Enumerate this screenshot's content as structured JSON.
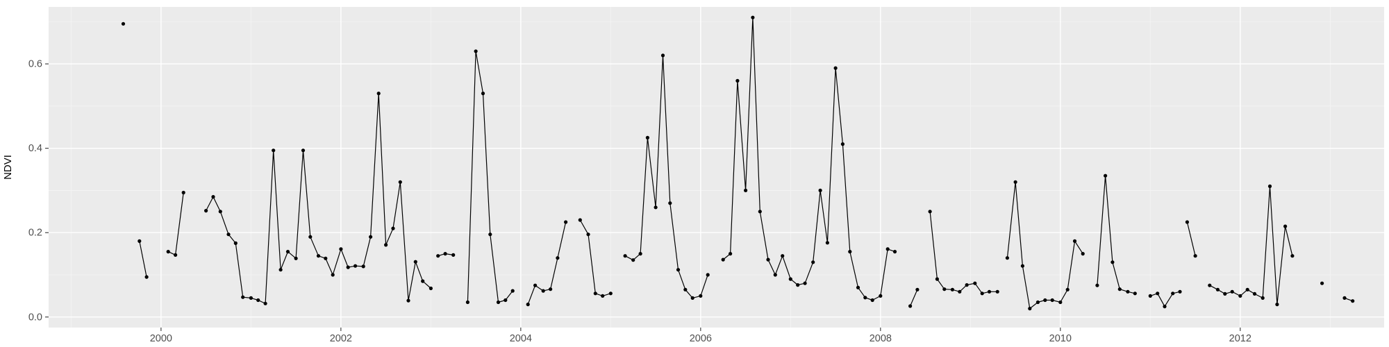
{
  "chart_data": {
    "type": "line",
    "title": "",
    "xlabel": "",
    "ylabel": "NDVI",
    "legend": "none",
    "grid": "on",
    "xlim": [
      1998.75,
      2013.6
    ],
    "ylim": [
      -0.025,
      0.735
    ],
    "x_ticks": [
      2000,
      2002,
      2004,
      2006,
      2008,
      2010,
      2012
    ],
    "x_tick_labels": [
      "2000",
      "2002",
      "2004",
      "2006",
      "2008",
      "2010",
      "2012"
    ],
    "x_minor": [
      1999,
      2001,
      2003,
      2005,
      2007,
      2009,
      2011,
      2013
    ],
    "y_ticks": [
      0.0,
      0.2,
      0.4,
      0.6
    ],
    "y_tick_labels": [
      "0.0",
      "0.2",
      "0.4",
      "0.6"
    ],
    "y_minor": [
      0.1,
      0.3,
      0.5,
      0.7
    ],
    "colors": {
      "outer_bg": "#FFFFFF",
      "panel_bg": "#EBEBEB",
      "grid_major": "#FFFFFF",
      "grid_minor": "#F4F4F4",
      "tick_mark": "#333333",
      "tick_text": "#4D4D4D",
      "line": "#000000",
      "point": "#000000"
    },
    "series": [
      {
        "name": "NDVI",
        "note": "monthly NDVI values 1999-2013; segments are continuous runs separated by missing data",
        "segments": [
          [
            [
              1999.58,
              0.695
            ]
          ],
          [
            [
              1999.76,
              0.18
            ],
            [
              1999.84,
              0.095
            ]
          ],
          [
            [
              2000.08,
              0.155
            ],
            [
              2000.16,
              0.147
            ],
            [
              2000.25,
              0.295
            ]
          ],
          [
            [
              2000.5,
              0.252
            ],
            [
              2000.58,
              0.285
            ],
            [
              2000.66,
              0.25
            ],
            [
              2000.75,
              0.196
            ],
            [
              2000.83,
              0.175
            ],
            [
              2000.91,
              0.047
            ],
            [
              2001.0,
              0.045
            ],
            [
              2001.08,
              0.04
            ],
            [
              2001.16,
              0.032
            ],
            [
              2001.25,
              0.395
            ],
            [
              2001.33,
              0.112
            ],
            [
              2001.41,
              0.155
            ],
            [
              2001.5,
              0.139
            ],
            [
              2001.58,
              0.395
            ],
            [
              2001.66,
              0.19
            ],
            [
              2001.75,
              0.145
            ],
            [
              2001.83,
              0.139
            ],
            [
              2001.91,
              0.1
            ],
            [
              2002.0,
              0.161
            ],
            [
              2002.08,
              0.118
            ],
            [
              2002.16,
              0.121
            ],
            [
              2002.25,
              0.12
            ],
            [
              2002.33,
              0.19
            ],
            [
              2002.42,
              0.53
            ],
            [
              2002.5,
              0.171
            ],
            [
              2002.58,
              0.21
            ],
            [
              2002.66,
              0.32
            ],
            [
              2002.75,
              0.039
            ],
            [
              2002.83,
              0.131
            ],
            [
              2002.91,
              0.085
            ],
            [
              2003.0,
              0.068
            ]
          ],
          [
            [
              2003.08,
              0.145
            ],
            [
              2003.16,
              0.15
            ],
            [
              2003.25,
              0.147
            ]
          ],
          [
            [
              2003.41,
              0.035
            ],
            [
              2003.5,
              0.63
            ],
            [
              2003.58,
              0.53
            ],
            [
              2003.66,
              0.196
            ],
            [
              2003.75,
              0.035
            ],
            [
              2003.83,
              0.04
            ],
            [
              2003.91,
              0.062
            ]
          ],
          [
            [
              2004.08,
              0.03
            ],
            [
              2004.16,
              0.075
            ],
            [
              2004.25,
              0.062
            ],
            [
              2004.33,
              0.066
            ],
            [
              2004.41,
              0.14
            ],
            [
              2004.5,
              0.225
            ]
          ],
          [
            [
              2004.66,
              0.23
            ],
            [
              2004.75,
              0.196
            ],
            [
              2004.83,
              0.056
            ],
            [
              2004.91,
              0.05
            ],
            [
              2005.0,
              0.056
            ]
          ],
          [
            [
              2005.16,
              0.145
            ],
            [
              2005.25,
              0.135
            ],
            [
              2005.33,
              0.15
            ],
            [
              2005.41,
              0.425
            ],
            [
              2005.5,
              0.26
            ],
            [
              2005.58,
              0.62
            ],
            [
              2005.66,
              0.27
            ],
            [
              2005.75,
              0.112
            ],
            [
              2005.83,
              0.065
            ],
            [
              2005.91,
              0.045
            ],
            [
              2006.0,
              0.05
            ],
            [
              2006.08,
              0.1
            ]
          ],
          [
            [
              2006.25,
              0.136
            ],
            [
              2006.33,
              0.15
            ],
            [
              2006.41,
              0.56
            ],
            [
              2006.5,
              0.3
            ],
            [
              2006.58,
              0.71
            ],
            [
              2006.66,
              0.25
            ],
            [
              2006.75,
              0.136
            ],
            [
              2006.83,
              0.1
            ],
            [
              2006.91,
              0.145
            ],
            [
              2007.0,
              0.09
            ],
            [
              2007.08,
              0.076
            ],
            [
              2007.16,
              0.08
            ],
            [
              2007.25,
              0.13
            ],
            [
              2007.33,
              0.3
            ],
            [
              2007.41,
              0.176
            ],
            [
              2007.5,
              0.59
            ],
            [
              2007.58,
              0.41
            ],
            [
              2007.66,
              0.155
            ],
            [
              2007.75,
              0.07
            ],
            [
              2007.83,
              0.046
            ],
            [
              2007.91,
              0.04
            ],
            [
              2008.0,
              0.05
            ],
            [
              2008.08,
              0.161
            ],
            [
              2008.16,
              0.155
            ]
          ],
          [
            [
              2008.33,
              0.026
            ],
            [
              2008.41,
              0.065
            ]
          ],
          [
            [
              2008.55,
              0.25
            ],
            [
              2008.63,
              0.09
            ],
            [
              2008.71,
              0.066
            ],
            [
              2008.8,
              0.065
            ],
            [
              2008.88,
              0.06
            ],
            [
              2008.96,
              0.076
            ],
            [
              2009.05,
              0.08
            ],
            [
              2009.13,
              0.056
            ],
            [
              2009.21,
              0.06
            ],
            [
              2009.3,
              0.06
            ]
          ],
          [
            [
              2009.41,
              0.14
            ],
            [
              2009.5,
              0.32
            ],
            [
              2009.58,
              0.121
            ],
            [
              2009.66,
              0.02
            ],
            [
              2009.75,
              0.035
            ],
            [
              2009.83,
              0.04
            ],
            [
              2009.91,
              0.04
            ],
            [
              2010.0,
              0.035
            ],
            [
              2010.08,
              0.065
            ],
            [
              2010.16,
              0.18
            ],
            [
              2010.25,
              0.15
            ]
          ],
          [
            [
              2010.41,
              0.075
            ],
            [
              2010.5,
              0.335
            ],
            [
              2010.58,
              0.13
            ],
            [
              2010.66,
              0.066
            ],
            [
              2010.75,
              0.06
            ],
            [
              2010.83,
              0.056
            ]
          ],
          [
            [
              2011.0,
              0.05
            ],
            [
              2011.08,
              0.056
            ],
            [
              2011.16,
              0.025
            ],
            [
              2011.25,
              0.056
            ],
            [
              2011.33,
              0.06
            ]
          ],
          [
            [
              2011.41,
              0.225
            ],
            [
              2011.5,
              0.145
            ]
          ],
          [
            [
              2011.66,
              0.075
            ],
            [
              2011.75,
              0.065
            ],
            [
              2011.83,
              0.055
            ],
            [
              2011.91,
              0.06
            ],
            [
              2012.0,
              0.05
            ],
            [
              2012.08,
              0.065
            ],
            [
              2012.16,
              0.055
            ],
            [
              2012.25,
              0.045
            ],
            [
              2012.33,
              0.31
            ],
            [
              2012.41,
              0.03
            ],
            [
              2012.5,
              0.215
            ],
            [
              2012.58,
              0.145
            ]
          ],
          [
            [
              2012.91,
              0.08
            ]
          ],
          [
            [
              2013.16,
              0.045
            ],
            [
              2013.25,
              0.038
            ]
          ]
        ]
      }
    ]
  }
}
